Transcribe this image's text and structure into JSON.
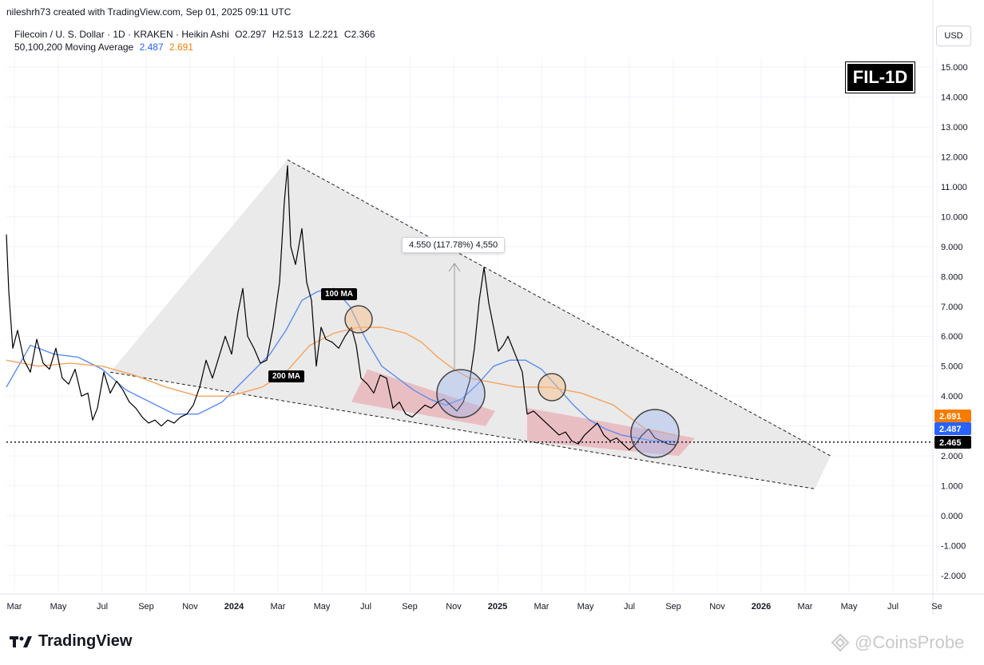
{
  "header": {
    "author_line": "nileshrh73 created with TradingView.com, Sep 01, 2025 09:11 UTC",
    "symbol": "Filecoin / U. S. Dollar · 1D · KRAKEN · Heikin Ashi",
    "ohlc": [
      "O2.297",
      "H2.513",
      "L2.221",
      "C2.366"
    ],
    "ma_label": "50,100,200 Moving Average",
    "ma_values": [
      "2.487",
      "2.691"
    ]
  },
  "currency_button": "USD",
  "badge": "FIL-1D",
  "branding": {
    "logo_text": "TradingView",
    "watermark": "@CoinsProbe"
  },
  "annotations": {
    "measure": "4.550 (117.78%) 4,550",
    "ma100": "100 MA",
    "ma200": "200 MA"
  },
  "colors": {
    "ma_blue": "#5b8cf2",
    "ma_orange": "#f5a35c",
    "wedge_fill": "#e6e6e6",
    "channel_fill": "#e8a0a8",
    "price_tag_orange": "#f57c00",
    "price_tag_blue": "#2962ff"
  },
  "chart_data": {
    "type": "line",
    "y_ticks": [
      "15.000",
      "14.000",
      "13.000",
      "12.000",
      "11.000",
      "10.000",
      "9.000",
      "8.000",
      "7.000",
      "6.000",
      "5.000",
      "4.000",
      "3.000",
      "2.000",
      "1.000",
      "0.000",
      "-1.000",
      "-2.000"
    ],
    "ylim": [
      -2.2,
      15.5
    ],
    "x_ticks": [
      "Mar",
      "May",
      "Jul",
      "Sep",
      "Nov",
      "2024",
      "Mar",
      "May",
      "Jul",
      "Sep",
      "Nov",
      "2025",
      "Mar",
      "May",
      "Jul",
      "Sep",
      "Nov",
      "2026",
      "Mar",
      "May",
      "Jul",
      "Se"
    ],
    "price_tags": [
      {
        "label": "2.691",
        "value": 2.691,
        "color": "#f57c00"
      },
      {
        "label": "2.487",
        "value": 2.487,
        "color": "#2962ff"
      },
      {
        "label": "2.465",
        "value": 2.465,
        "color": "#000000"
      }
    ],
    "current_price_line": 2.465,
    "series": [
      {
        "name": "Price",
        "color": "#000000",
        "points": [
          [
            0,
            9.4
          ],
          [
            3,
            7.5
          ],
          [
            8,
            5.6
          ],
          [
            14,
            6.2
          ],
          [
            22,
            5.2
          ],
          [
            30,
            4.8
          ],
          [
            38,
            5.9
          ],
          [
            46,
            5.1
          ],
          [
            54,
            4.9
          ],
          [
            62,
            5.6
          ],
          [
            70,
            4.6
          ],
          [
            78,
            4.4
          ],
          [
            86,
            4.9
          ],
          [
            94,
            4.0
          ],
          [
            102,
            4.1
          ],
          [
            108,
            3.2
          ],
          [
            114,
            3.6
          ],
          [
            122,
            4.8
          ],
          [
            130,
            4.1
          ],
          [
            138,
            4.5
          ],
          [
            146,
            4.2
          ],
          [
            154,
            3.8
          ],
          [
            162,
            3.6
          ],
          [
            170,
            3.3
          ],
          [
            178,
            3.1
          ],
          [
            186,
            3.2
          ],
          [
            194,
            3.0
          ],
          [
            202,
            3.2
          ],
          [
            210,
            3.1
          ],
          [
            218,
            3.3
          ],
          [
            226,
            3.4
          ],
          [
            234,
            3.7
          ],
          [
            242,
            4.3
          ],
          [
            250,
            5.2
          ],
          [
            258,
            4.6
          ],
          [
            266,
            5.3
          ],
          [
            274,
            6.0
          ],
          [
            282,
            5.4
          ],
          [
            290,
            6.8
          ],
          [
            296,
            7.6
          ],
          [
            302,
            6.0
          ],
          [
            310,
            5.6
          ],
          [
            318,
            5.1
          ],
          [
            326,
            5.2
          ],
          [
            334,
            6.3
          ],
          [
            342,
            7.8
          ],
          [
            348,
            10.5
          ],
          [
            352,
            11.7
          ],
          [
            356,
            9.0
          ],
          [
            362,
            8.4
          ],
          [
            370,
            9.6
          ],
          [
            376,
            7.8
          ],
          [
            382,
            7.2
          ],
          [
            388,
            5.0
          ],
          [
            394,
            6.3
          ],
          [
            400,
            5.9
          ],
          [
            408,
            5.8
          ],
          [
            416,
            5.6
          ],
          [
            424,
            6.0
          ],
          [
            432,
            6.3
          ],
          [
            438,
            5.7
          ],
          [
            444,
            4.6
          ],
          [
            452,
            4.4
          ],
          [
            460,
            4.1
          ],
          [
            468,
            4.7
          ],
          [
            476,
            4.6
          ],
          [
            484,
            3.6
          ],
          [
            492,
            3.8
          ],
          [
            500,
            3.4
          ],
          [
            508,
            3.3
          ],
          [
            516,
            3.5
          ],
          [
            524,
            3.7
          ],
          [
            532,
            3.6
          ],
          [
            540,
            3.8
          ],
          [
            548,
            3.9
          ],
          [
            556,
            3.7
          ],
          [
            564,
            3.5
          ],
          [
            572,
            3.8
          ],
          [
            580,
            4.5
          ],
          [
            586,
            5.6
          ],
          [
            592,
            7.2
          ],
          [
            598,
            8.3
          ],
          [
            604,
            7.1
          ],
          [
            610,
            6.3
          ],
          [
            616,
            5.5
          ],
          [
            622,
            5.7
          ],
          [
            628,
            6.0
          ],
          [
            634,
            5.6
          ],
          [
            640,
            5.2
          ],
          [
            646,
            4.8
          ],
          [
            652,
            3.4
          ],
          [
            660,
            3.5
          ],
          [
            668,
            3.3
          ],
          [
            676,
            3.1
          ],
          [
            684,
            2.9
          ],
          [
            692,
            2.7
          ],
          [
            700,
            2.8
          ],
          [
            708,
            2.5
          ],
          [
            716,
            2.4
          ],
          [
            724,
            2.7
          ],
          [
            732,
            2.9
          ],
          [
            740,
            3.1
          ],
          [
            748,
            2.7
          ],
          [
            756,
            2.5
          ],
          [
            764,
            2.6
          ],
          [
            772,
            2.4
          ],
          [
            780,
            2.2
          ],
          [
            788,
            2.4
          ],
          [
            796,
            2.7
          ],
          [
            804,
            2.9
          ],
          [
            812,
            2.6
          ],
          [
            820,
            2.5
          ],
          [
            828,
            2.4
          ],
          [
            838,
            2.37
          ]
        ]
      },
      {
        "name": "100 MA",
        "color": "#5b8cf2",
        "points": [
          [
            0,
            4.3
          ],
          [
            30,
            5.7
          ],
          [
            60,
            5.4
          ],
          [
            90,
            5.3
          ],
          [
            120,
            4.9
          ],
          [
            150,
            4.2
          ],
          [
            180,
            3.8
          ],
          [
            210,
            3.4
          ],
          [
            240,
            3.4
          ],
          [
            270,
            3.8
          ],
          [
            300,
            4.6
          ],
          [
            330,
            5.4
          ],
          [
            350,
            6.2
          ],
          [
            370,
            7.2
          ],
          [
            390,
            7.5
          ],
          [
            410,
            7.6
          ],
          [
            430,
            7.0
          ],
          [
            450,
            5.9
          ],
          [
            470,
            5.0
          ],
          [
            490,
            4.6
          ],
          [
            510,
            4.2
          ],
          [
            530,
            3.9
          ],
          [
            550,
            3.7
          ],
          [
            570,
            3.9
          ],
          [
            590,
            4.4
          ],
          [
            610,
            5.0
          ],
          [
            630,
            5.2
          ],
          [
            650,
            5.2
          ],
          [
            670,
            4.9
          ],
          [
            690,
            4.3
          ],
          [
            710,
            3.7
          ],
          [
            730,
            3.2
          ],
          [
            750,
            2.9
          ],
          [
            770,
            2.7
          ],
          [
            790,
            2.6
          ],
          [
            810,
            2.5
          ],
          [
            838,
            2.49
          ]
        ]
      },
      {
        "name": "200 MA",
        "color": "#f5a35c",
        "points": [
          [
            0,
            5.2
          ],
          [
            40,
            5.0
          ],
          [
            80,
            5.1
          ],
          [
            120,
            5.0
          ],
          [
            160,
            4.7
          ],
          [
            200,
            4.3
          ],
          [
            240,
            4.0
          ],
          [
            280,
            4.0
          ],
          [
            320,
            4.3
          ],
          [
            350,
            4.8
          ],
          [
            380,
            5.7
          ],
          [
            410,
            6.1
          ],
          [
            440,
            6.3
          ],
          [
            470,
            6.3
          ],
          [
            500,
            6.1
          ],
          [
            520,
            5.8
          ],
          [
            540,
            5.3
          ],
          [
            560,
            4.9
          ],
          [
            580,
            4.6
          ],
          [
            600,
            4.5
          ],
          [
            620,
            4.4
          ],
          [
            640,
            4.3
          ],
          [
            660,
            4.3
          ],
          [
            680,
            4.3
          ],
          [
            700,
            4.2
          ],
          [
            720,
            4.1
          ],
          [
            740,
            3.9
          ],
          [
            760,
            3.7
          ],
          [
            780,
            3.3
          ],
          [
            800,
            2.9
          ],
          [
            820,
            2.8
          ],
          [
            838,
            2.69
          ]
        ]
      }
    ],
    "wedge": {
      "top_line": [
        [
          352,
          11.9
        ],
        [
          1032,
          2.0
        ]
      ],
      "bottom_line": [
        [
          130,
          4.8
        ],
        [
          1012,
          0.9
        ]
      ]
    },
    "channels": [
      {
        "points": [
          [
            452,
            4.9
          ],
          [
            612,
            3.5
          ],
          [
            600,
            3.0
          ],
          [
            432,
            3.8
          ]
        ]
      },
      {
        "points": [
          [
            652,
            3.6
          ],
          [
            862,
            2.6
          ],
          [
            842,
            2.0
          ],
          [
            652,
            2.5
          ]
        ]
      }
    ]
  }
}
